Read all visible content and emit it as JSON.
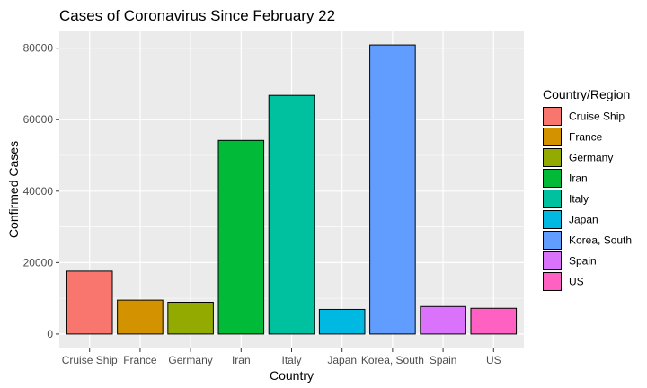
{
  "chart_data": {
    "type": "bar",
    "title": "Cases of Coronavirus Since February 22",
    "xlabel": "Country",
    "ylabel": "Confirmed Cases",
    "categories": [
      "Cruise Ship",
      "France",
      "Germany",
      "Iran",
      "Italy",
      "Japan",
      "Korea, South",
      "Spain",
      "US"
    ],
    "values": [
      17600,
      9500,
      8900,
      54200,
      66800,
      6900,
      80900,
      7700,
      7200
    ],
    "colors": [
      "#F8766D",
      "#D39200",
      "#93AA00",
      "#00BA38",
      "#00C19F",
      "#00B9E3",
      "#619CFF",
      "#DB72FB",
      "#FF61C3"
    ],
    "ylim": [
      -4045,
      84945
    ],
    "yticks": [
      0,
      20000,
      40000,
      60000,
      80000
    ],
    "ytick_labels": [
      "0",
      "20000",
      "40000",
      "60000",
      "80000"
    ],
    "grid": true,
    "background": "#EBEBEB",
    "legend": {
      "title": "Country/Region",
      "placement": "right"
    }
  }
}
